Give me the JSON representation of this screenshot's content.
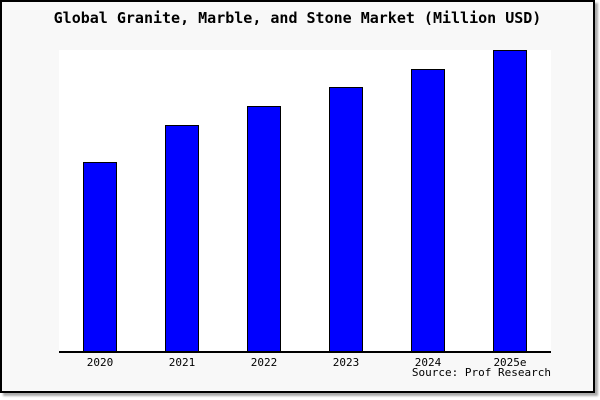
{
  "chart_data": {
    "type": "bar",
    "title": "Global Granite, Marble, and Stone Market (Million USD)",
    "categories": [
      "2020",
      "2021",
      "2022",
      "2023",
      "2024",
      "2025e"
    ],
    "values": [
      62.8,
      75.1,
      81.4,
      87.7,
      93.7,
      100
    ],
    "values_note": "relative bar heights as % of tallest bar (chart shows no y-axis tick labels)",
    "xlabel": "",
    "ylabel": "",
    "y_axis_visible": false,
    "gridlines": false,
    "legend": "none",
    "bar_color": "#0000ff",
    "bar_border_color": "#000000",
    "plot_background": "#ffffff",
    "outer_background": "#f8f8f8",
    "frame_border_color": "#000000"
  },
  "source": {
    "label": "Source: Prof Research"
  }
}
